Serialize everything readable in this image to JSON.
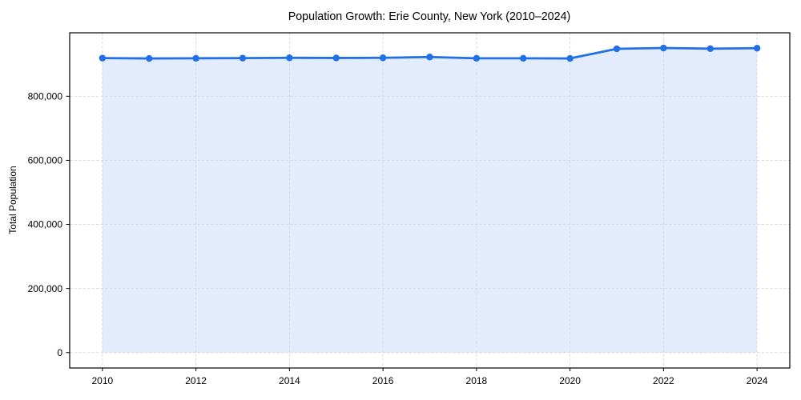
{
  "figure": {
    "title": "Population Growth: Erie County, New York (2010–2024)",
    "ylabel": "Total Population",
    "colors": {
      "line": "#2170e8",
      "marker": "#2170e8",
      "fill": "rgba(33,112,232,0.13)",
      "grid": "#d9d9d9",
      "spine": "#000000",
      "tick": "#000000",
      "text": "#000000",
      "background": "#ffffff"
    }
  },
  "chart_data": {
    "type": "area",
    "title": "Population Growth: Erie County, New York (2010–2024)",
    "xlabel": "",
    "ylabel": "Total Population",
    "x": [
      2010,
      2011,
      2012,
      2013,
      2014,
      2015,
      2016,
      2017,
      2018,
      2019,
      2020,
      2021,
      2022,
      2023,
      2024
    ],
    "series": [
      {
        "name": "Total Population",
        "values": [
          919000,
          918000,
          918500,
          919000,
          920000,
          919500,
          920000,
          922500,
          918500,
          918500,
          918000,
          948000,
          950500,
          948500,
          950000
        ]
      }
    ],
    "fill_baseline": 0,
    "xlim": [
      2009.3,
      2024.7
    ],
    "ylim": [
      -48000,
      998000
    ],
    "xticks": [
      2010,
      2012,
      2014,
      2016,
      2018,
      2020,
      2022,
      2024
    ],
    "yticks": [
      0,
      200000,
      400000,
      600000,
      800000
    ],
    "ytick_labels": [
      "0",
      "200,000",
      "400,000",
      "600,000",
      "800,000"
    ],
    "grid": true,
    "grid_style": "dashed",
    "legend": "none",
    "marker": "circle"
  }
}
